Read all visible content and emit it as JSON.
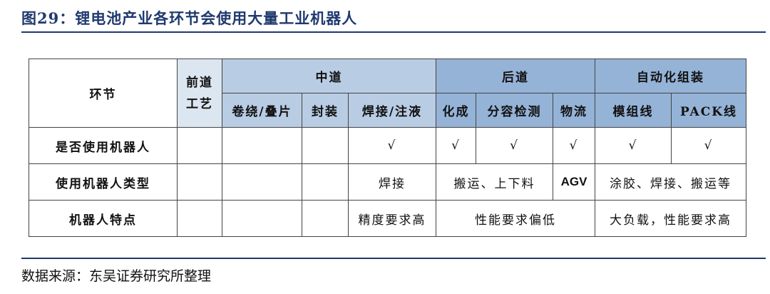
{
  "title": "图29：锂电池产业各环节会使用大量工业机器人",
  "header": {
    "stage": "环节",
    "front": "前道工艺",
    "middle": "中道",
    "back": "后道",
    "auto": "自动化组装",
    "sub": [
      "卷绕/叠片",
      "封装",
      "焊接/注液",
      "化成",
      "分容检测",
      "物流",
      "模组线",
      "PACK线"
    ]
  },
  "rows": [
    {
      "label": "是否使用机器人",
      "cells": [
        "",
        "",
        "",
        "√",
        "√",
        "√",
        "√",
        "√",
        "√"
      ]
    },
    {
      "label": "使用机器人类型",
      "weld": "焊接",
      "move": "搬运、上下料",
      "agv": "AGV",
      "auto": "涂胶、焊接、搬运等"
    },
    {
      "label": "机器人特点",
      "mid": "精度要求高",
      "back": "性能要求偏低",
      "auto": "大负载，性能要求高"
    }
  ],
  "source": "数据来源：东吴证券研究所整理",
  "colors": {
    "front": "#dce6f1",
    "middle": "#b8cce4",
    "back": "#95b3d7",
    "title": "#1f3a6e"
  }
}
